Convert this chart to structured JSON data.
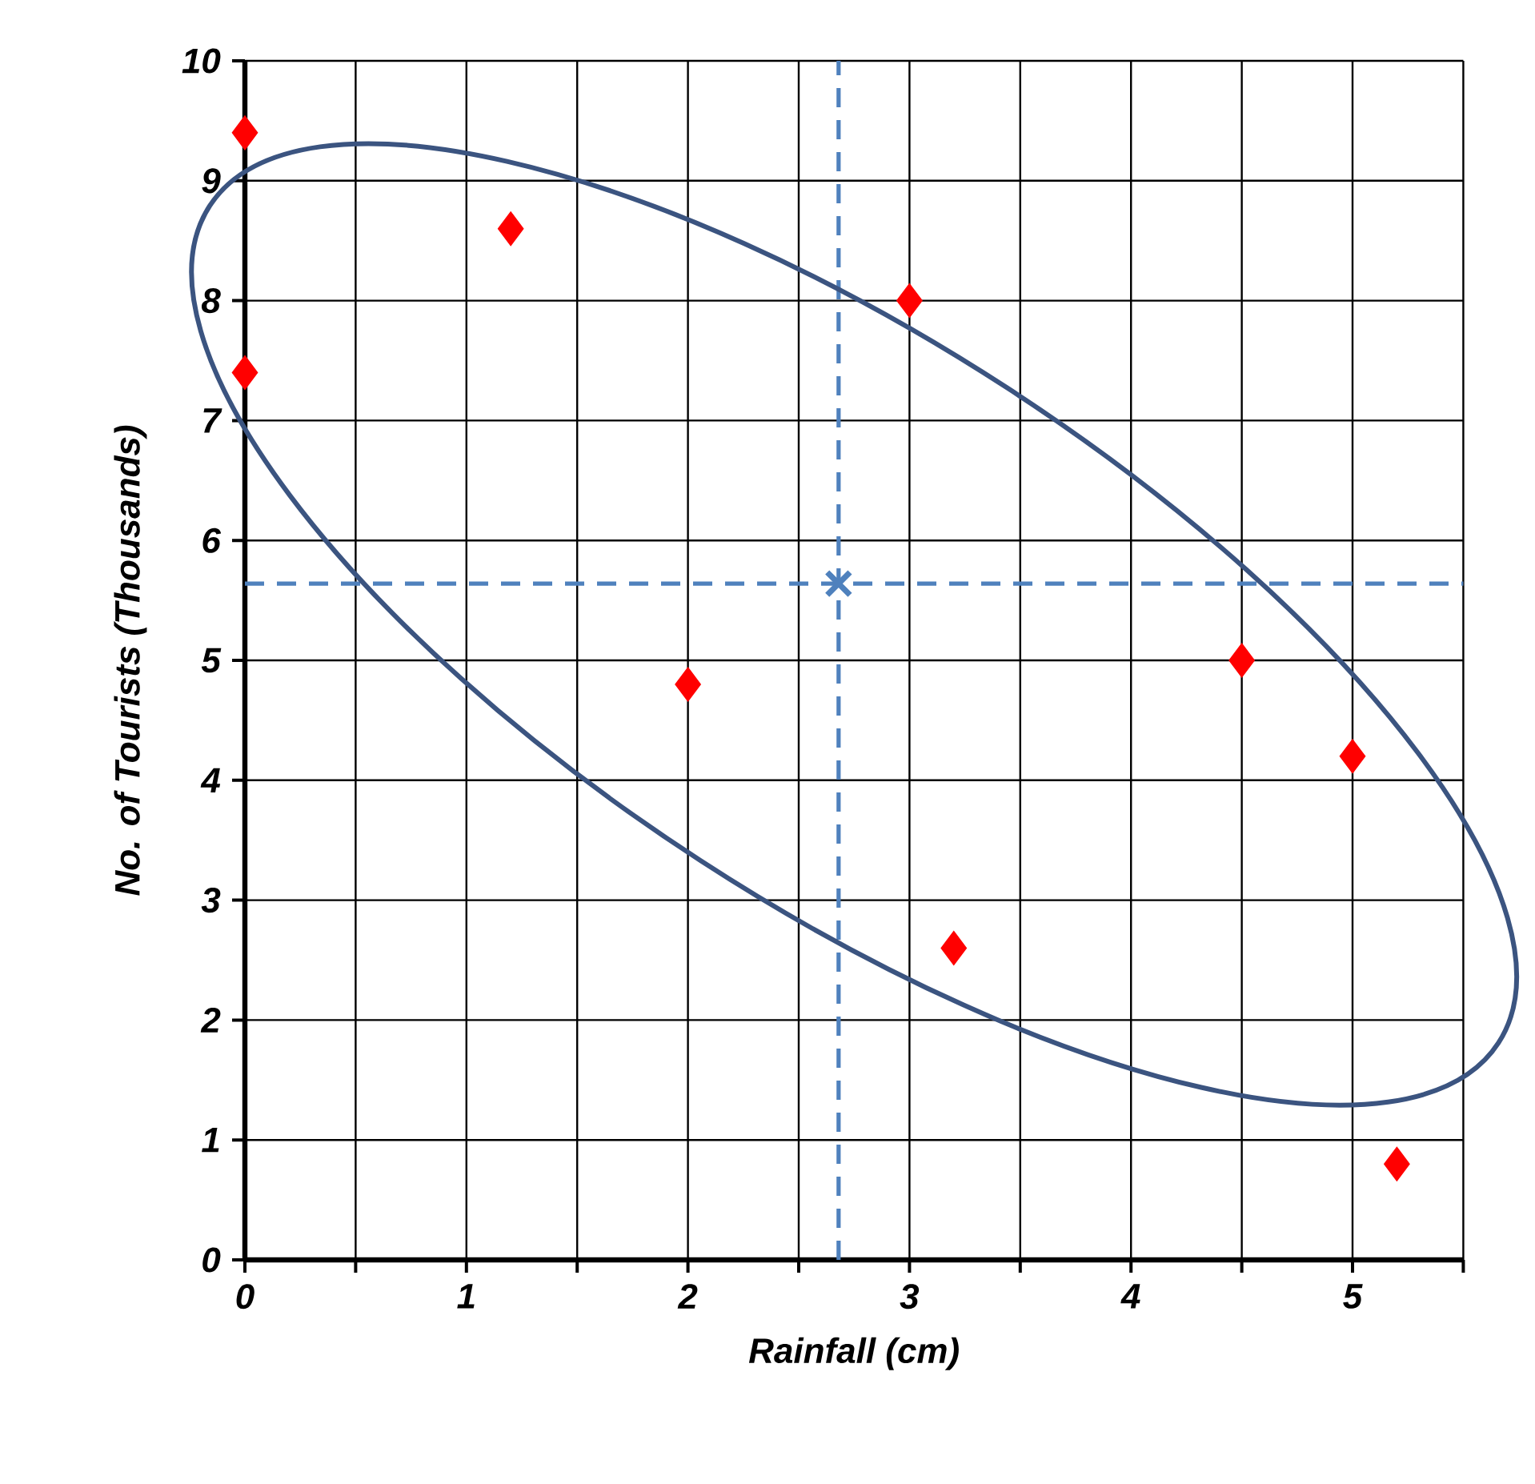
{
  "chart_data": {
    "type": "scatter",
    "xlabel": "Rainfall (cm)",
    "ylabel": "No. of Tourists (Thousands)",
    "xlim": [
      0,
      5.5
    ],
    "ylim": [
      0,
      10
    ],
    "xticks": [
      0,
      {
        "value": 0.5,
        "label": null
      },
      1,
      {
        "value": 1.5,
        "label": null
      },
      2,
      {
        "value": 2.5,
        "label": null
      },
      3,
      {
        "value": 3.5,
        "label": null
      },
      4,
      {
        "value": 4.5,
        "label": null
      },
      5,
      {
        "value": 5.5,
        "label": null
      }
    ],
    "yticks": [
      0,
      1,
      2,
      3,
      4,
      5,
      6,
      7,
      8,
      9,
      10
    ],
    "grid": true,
    "series": [
      {
        "color": "#ff0000",
        "marker": "diamond",
        "x": [
          0,
          0,
          1.2,
          2,
          3,
          3.2,
          4.5,
          5,
          5.2
        ],
        "values": [
          9.4,
          7.4,
          8.6,
          4.8,
          8,
          2.6,
          5,
          4.2,
          0.8
        ]
      },
      {
        "color": "#4f81bd",
        "marker": "cross",
        "x": [
          2.68
        ],
        "values": [
          5.64
        ]
      }
    ],
    "ref_lines": [
      {
        "axis": "x",
        "value": 2.68,
        "color": "#4f81bd",
        "line_style": "dashed"
      },
      {
        "axis": "y",
        "value": 5.64,
        "color": "#4f81bd",
        "line_style": "dashed"
      }
    ]
  }
}
